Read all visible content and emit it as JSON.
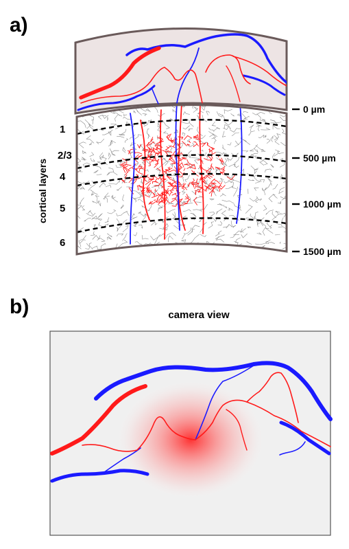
{
  "panel_a": {
    "label": "a)",
    "layers_title": "cortical layers",
    "layers": [
      "1",
      "2/3",
      "4",
      "5",
      "6"
    ],
    "depths": [
      "0 µm",
      "500 µm",
      "1000 µm",
      "1500 µm"
    ]
  },
  "panel_b": {
    "label": "b)",
    "caption": "camera view"
  },
  "colors": {
    "artery": "#ff1a1a",
    "vein": "#1a1aff",
    "surface_fill": "#ede4e4",
    "border": "#6a5a5a",
    "camera_bg": "#f0f0f0",
    "dashed": "#000000"
  },
  "icons": {
    "neuropil": "neuron-mesh-texture",
    "capillary_bed": "capillary-network"
  }
}
